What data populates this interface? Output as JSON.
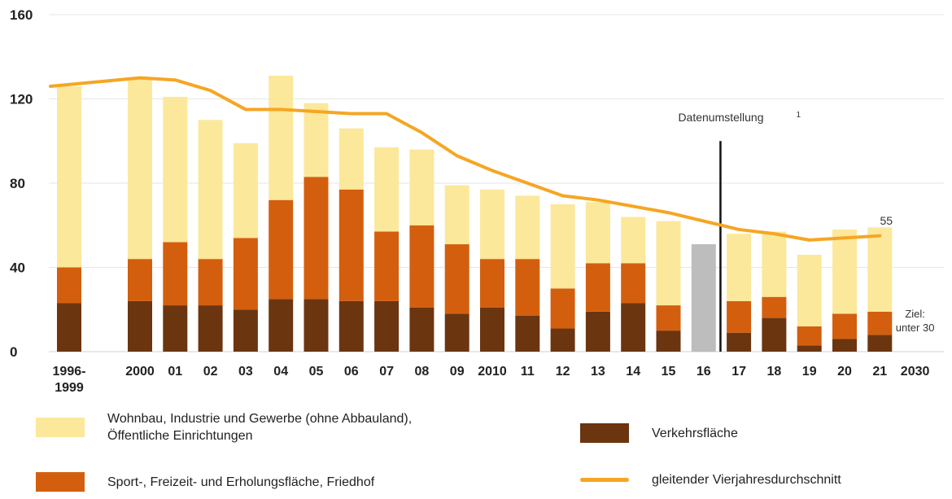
{
  "chart_data": {
    "type": "bar",
    "stacked": true,
    "categories": [
      "1996-\n1999",
      "2000",
      "01",
      "02",
      "03",
      "04",
      "05",
      "06",
      "07",
      "08",
      "09",
      "2010",
      "11",
      "12",
      "13",
      "14",
      "15",
      "16",
      "17",
      "18",
      "19",
      "20",
      "21",
      "2030"
    ],
    "ylim": [
      0,
      160
    ],
    "yticks": [
      0,
      40,
      80,
      120,
      160
    ],
    "grid": true,
    "series": [
      {
        "name": "Verkehrsfläche",
        "color": "#6b3510",
        "values": [
          23,
          24,
          22,
          22,
          20,
          25,
          25,
          24,
          24,
          21,
          18,
          21,
          17,
          11,
          19,
          23,
          10,
          null,
          9,
          16,
          3,
          6,
          8,
          null
        ]
      },
      {
        "name": "Sport-, Freizeit- und Erholungsfläche, Friedhof",
        "color": "#d35f0e",
        "values": [
          17,
          20,
          30,
          22,
          34,
          47,
          58,
          53,
          33,
          39,
          33,
          23,
          27,
          19,
          23,
          19,
          12,
          null,
          15,
          10,
          9,
          12,
          11,
          null
        ]
      },
      {
        "name": "Wohnbau, Industrie und Gewerbe (ohne Abbauland),\nÖffentliche Einrichtungen",
        "color": "#fbe89b",
        "values": [
          86,
          86,
          69,
          66,
          45,
          59,
          35,
          29,
          40,
          36,
          28,
          33,
          30,
          40,
          29,
          22,
          40,
          null,
          32,
          31,
          34,
          40,
          40,
          null
        ]
      },
      {
        "name": "Datenumstellung (gesamt)",
        "color": "#bdbdbd",
        "values": [
          null,
          null,
          null,
          null,
          null,
          null,
          null,
          null,
          null,
          null,
          null,
          null,
          null,
          null,
          null,
          null,
          null,
          51,
          null,
          null,
          null,
          null,
          null,
          null
        ]
      },
      {
        "name": "gleitender Vierjahresdurchschnitt",
        "type": "line",
        "color": "#f5a623",
        "values": [
          126,
          130,
          129,
          124,
          115,
          115,
          114,
          113,
          113,
          104,
          93,
          86,
          80,
          74,
          72,
          69,
          66,
          62,
          58,
          56,
          53,
          54,
          55,
          null
        ]
      }
    ],
    "annotations": [
      {
        "text": "Datenumstellung",
        "superscript": "1",
        "category": "16"
      },
      {
        "text": "55",
        "category": "21"
      },
      {
        "text": "Ziel:\nunter 30",
        "category": "2030"
      }
    ]
  },
  "legend": [
    {
      "label": "Wohnbau, Industrie und Gewerbe (ohne Abbauland),\nÖffentliche Einrichtungen",
      "kind": "box",
      "color": "#fbe89b"
    },
    {
      "label": "Verkehrsfläche",
      "kind": "box",
      "color": "#6b3510"
    },
    {
      "label": "Sport-, Freizeit- und Erholungsfläche, Friedhof",
      "kind": "box",
      "color": "#d35f0e"
    },
    {
      "label": "gleitender Vierjahresdurchschnitt",
      "kind": "line",
      "color": "#f5a623"
    }
  ]
}
